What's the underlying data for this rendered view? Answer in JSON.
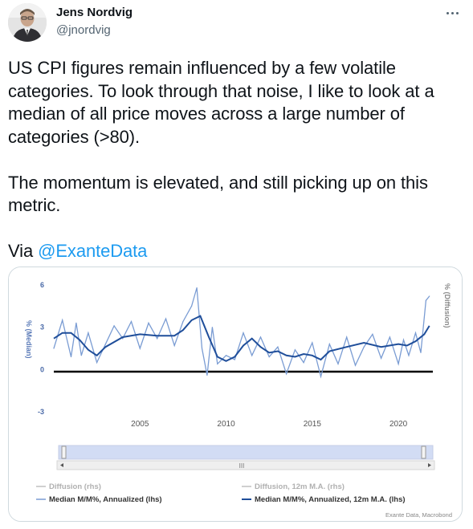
{
  "author": {
    "name": "Jens Nordvig",
    "handle": "@jnordvig",
    "avatar_icon": "person-avatar-icon"
  },
  "more_icon": "more-horizontal-icon",
  "tweet": {
    "paragraph1": "US CPI figures remain influenced by a few volatile categories. To look through that noise, I like to look at a median of all price moves across a large number of categories (>80).",
    "paragraph2": "The momentum is elevated, and still picking up on this metric.",
    "via_label": "Via ",
    "mention": "@ExanteData"
  },
  "colors": {
    "text": "#0f1419",
    "secondary": "#536471",
    "link": "#1d9bf0",
    "median_line": "#7a9cd3",
    "ma_line": "#1f4e9a",
    "diffusion_line": "#c0c0c0"
  },
  "chart_data": {
    "type": "line",
    "ylabel_left": "% (Median)",
    "ylabel_right": "% (Diffusion)",
    "yticks": [
      "6",
      "3",
      "0",
      "-3"
    ],
    "ylim": [
      -3,
      6
    ],
    "xlim": [
      2000,
      2022
    ],
    "xticks": [
      "2005",
      "2010",
      "2015",
      "2020"
    ],
    "navigator_label": "III",
    "source": "Exante Data, Macrobond",
    "legend": [
      "Diffusion (rhs)",
      "Diffusion, 12m M.A. (rhs)",
      "Median M/M%, Annualized (lhs)",
      "Median M/M%, Annualized, 12m M.A. (lhs)"
    ],
    "series": [
      {
        "name": "Median M/M%, Annualized (lhs)",
        "x": [
          2000,
          2000.5,
          2001,
          2001.3,
          2001.6,
          2002,
          2002.5,
          2003,
          2003.5,
          2004,
          2004.5,
          2005,
          2005.5,
          2006,
          2006.5,
          2007,
          2007.5,
          2008,
          2008.3,
          2008.6,
          2008.9,
          2009.2,
          2009.5,
          2010,
          2010.5,
          2011,
          2011.5,
          2012,
          2012.5,
          2013,
          2013.5,
          2014,
          2014.5,
          2015,
          2015.5,
          2016,
          2016.5,
          2017,
          2017.5,
          2018,
          2018.5,
          2019,
          2019.5,
          2020,
          2020.3,
          2020.6,
          2021,
          2021.3,
          2021.6,
          2021.8
        ],
        "values": [
          1.5,
          3.5,
          0.9,
          3.3,
          1.0,
          2.6,
          0.5,
          1.8,
          3.1,
          2.2,
          3.4,
          1.5,
          3.3,
          2.2,
          3.6,
          1.7,
          3.4,
          4.5,
          5.8,
          1.5,
          -0.4,
          3.0,
          0.4,
          1.0,
          0.7,
          2.6,
          1.0,
          2.3,
          0.9,
          1.6,
          -0.3,
          1.4,
          0.5,
          1.9,
          -0.5,
          1.8,
          0.4,
          2.3,
          0.3,
          1.6,
          2.5,
          0.8,
          2.3,
          0.4,
          2.1,
          1.0,
          2.6,
          1.2,
          4.9,
          5.2
        ]
      },
      {
        "name": "Median M/M%, Annualized, 12m M.A. (lhs)",
        "x": [
          2000,
          2000.5,
          2001,
          2001.5,
          2002,
          2002.5,
          2003,
          2004,
          2005,
          2006,
          2007,
          2007.5,
          2008,
          2008.5,
          2009,
          2009.5,
          2010,
          2010.5,
          2011,
          2011.5,
          2012,
          2012.5,
          2013,
          2013.5,
          2014,
          2014.5,
          2015,
          2015.5,
          2016,
          2017,
          2018,
          2019,
          2020,
          2020.5,
          2021,
          2021.5,
          2021.8
        ],
        "values": [
          2.2,
          2.6,
          2.6,
          2.1,
          1.4,
          1.0,
          1.6,
          2.3,
          2.5,
          2.4,
          2.4,
          2.8,
          3.5,
          3.8,
          2.3,
          0.9,
          0.6,
          0.9,
          1.7,
          2.2,
          1.6,
          1.2,
          1.3,
          1.0,
          0.9,
          1.1,
          1.0,
          0.7,
          1.3,
          1.6,
          1.9,
          1.6,
          1.8,
          1.7,
          2.0,
          2.5,
          3.1
        ]
      }
    ]
  }
}
